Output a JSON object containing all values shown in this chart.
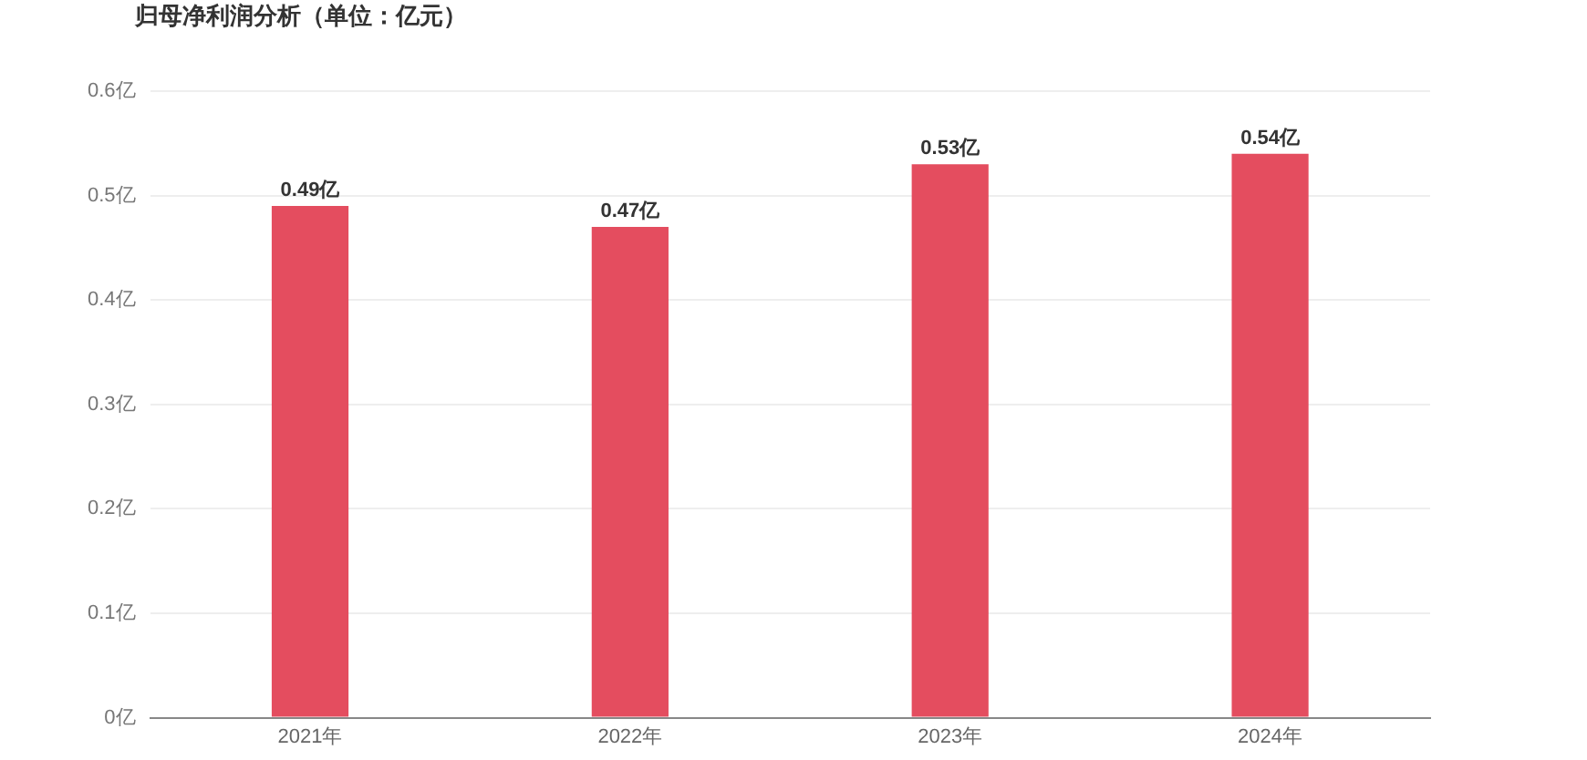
{
  "chart_data": {
    "type": "bar",
    "title": "归母净利润分析（单位：亿元）",
    "categories": [
      "2021年",
      "2022年",
      "2023年",
      "2024年"
    ],
    "values": [
      0.49,
      0.47,
      0.53,
      0.54
    ],
    "value_labels": [
      "0.49亿",
      "0.47亿",
      "0.53亿",
      "0.54亿"
    ],
    "color": "#e44d5f",
    "ylim": [
      0,
      0.6
    ],
    "yticks": [
      {
        "value": 0,
        "label": "0亿"
      },
      {
        "value": 0.1,
        "label": "0.1亿"
      },
      {
        "value": 0.2,
        "label": "0.2亿"
      },
      {
        "value": 0.3,
        "label": "0.3亿"
      },
      {
        "value": 0.4,
        "label": "0.4亿"
      },
      {
        "value": 0.5,
        "label": "0.5亿"
      },
      {
        "value": 0.6,
        "label": "0.6亿"
      }
    ],
    "grid": "y",
    "legend": false
  }
}
